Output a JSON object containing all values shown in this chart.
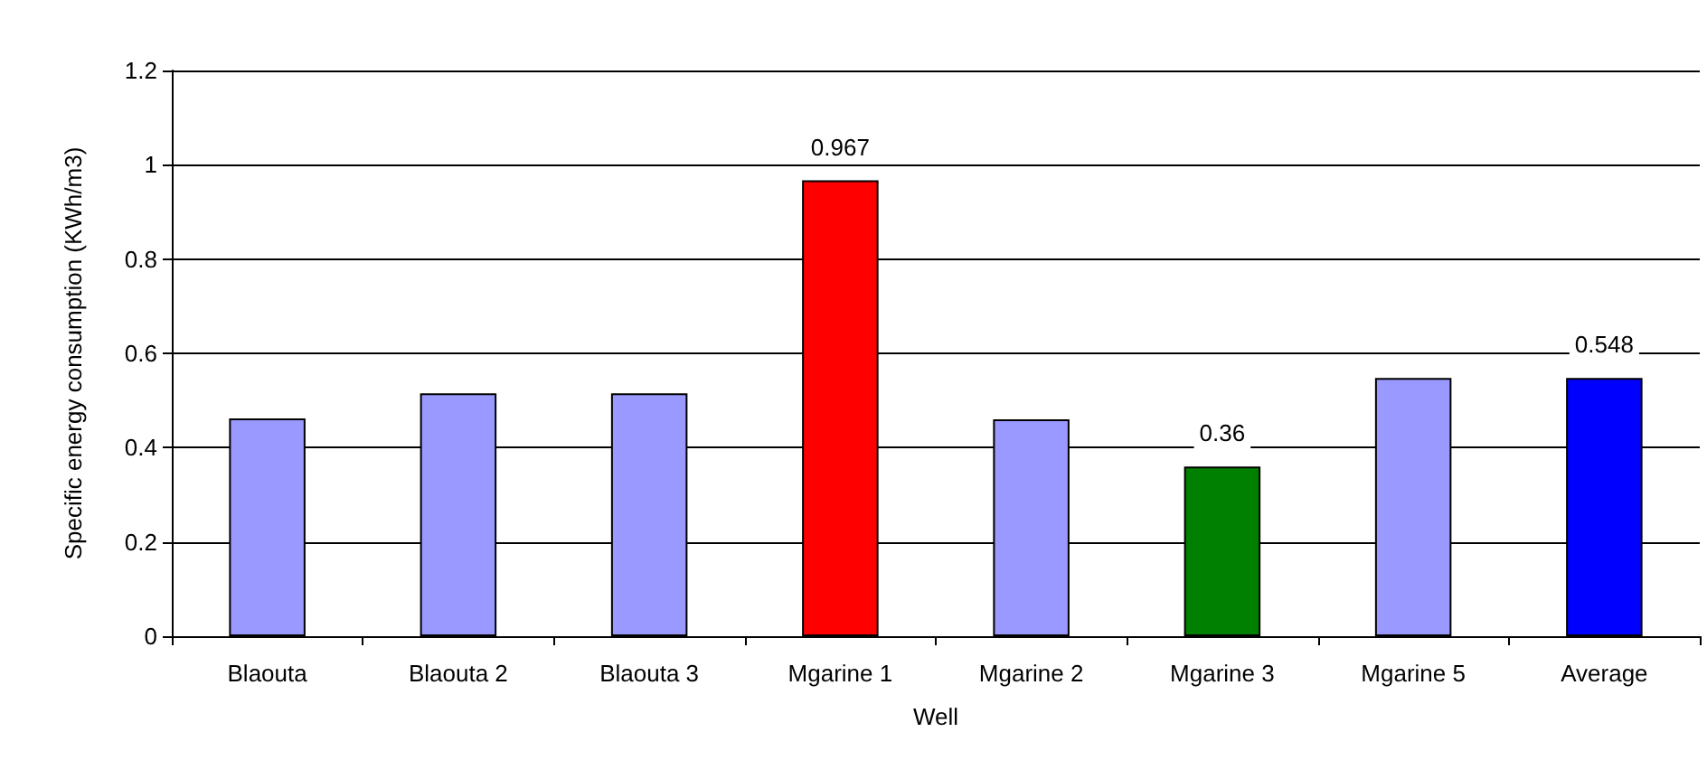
{
  "chart_data": {
    "type": "bar",
    "xlabel": "Well",
    "ylabel": "Specific energy consumption (KWh/m3)",
    "categories": [
      "Blaouta",
      "Blaouta 2",
      "Blaouta 3",
      "Mgarine 1",
      "Mgarine 2",
      "Mgarine 3",
      "Mgarine 5",
      "Average"
    ],
    "values": [
      0.462,
      0.515,
      0.515,
      0.967,
      0.46,
      0.36,
      0.548,
      0.548
    ],
    "colors": [
      "#9999ff",
      "#9999ff",
      "#9999ff",
      "#ff0000",
      "#9999ff",
      "#008000",
      "#9999ff",
      "#0000ff"
    ],
    "value_labels": [
      null,
      null,
      null,
      "0.967",
      null,
      "0.36",
      null,
      "0.548"
    ],
    "ylim": [
      0,
      1.2
    ],
    "yticks": [
      0,
      0.2,
      0.4,
      0.6,
      0.8,
      1,
      1.2
    ],
    "grid": "y"
  }
}
